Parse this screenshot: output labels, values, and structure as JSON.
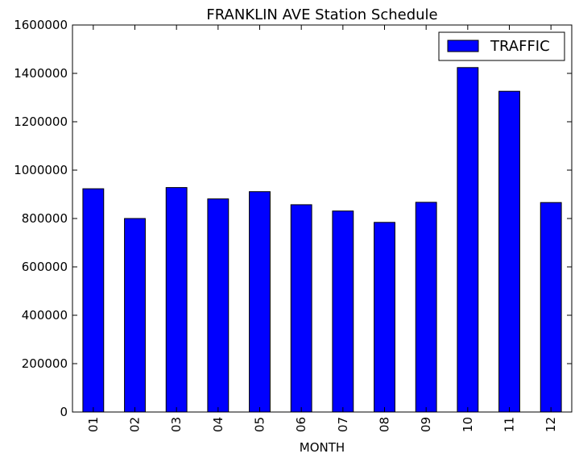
{
  "chart_data": {
    "type": "bar",
    "title": "FRANKLIN AVE Station Schedule",
    "xlabel": "MONTH",
    "ylabel": "",
    "categories": [
      "01",
      "02",
      "03",
      "04",
      "05",
      "06",
      "07",
      "08",
      "09",
      "10",
      "11",
      "12"
    ],
    "series": [
      {
        "name": "TRAFFIC",
        "color": "#0000ff",
        "values": [
          923000,
          800000,
          928000,
          881000,
          911000,
          857000,
          831000,
          784000,
          867000,
          1424000,
          1326000,
          866000
        ]
      }
    ],
    "ylim": [
      0,
      1600000
    ],
    "yticks": [
      0,
      200000,
      400000,
      600000,
      800000,
      1000000,
      1200000,
      1400000,
      1600000
    ],
    "grid": false,
    "legend_position": "top-right"
  }
}
